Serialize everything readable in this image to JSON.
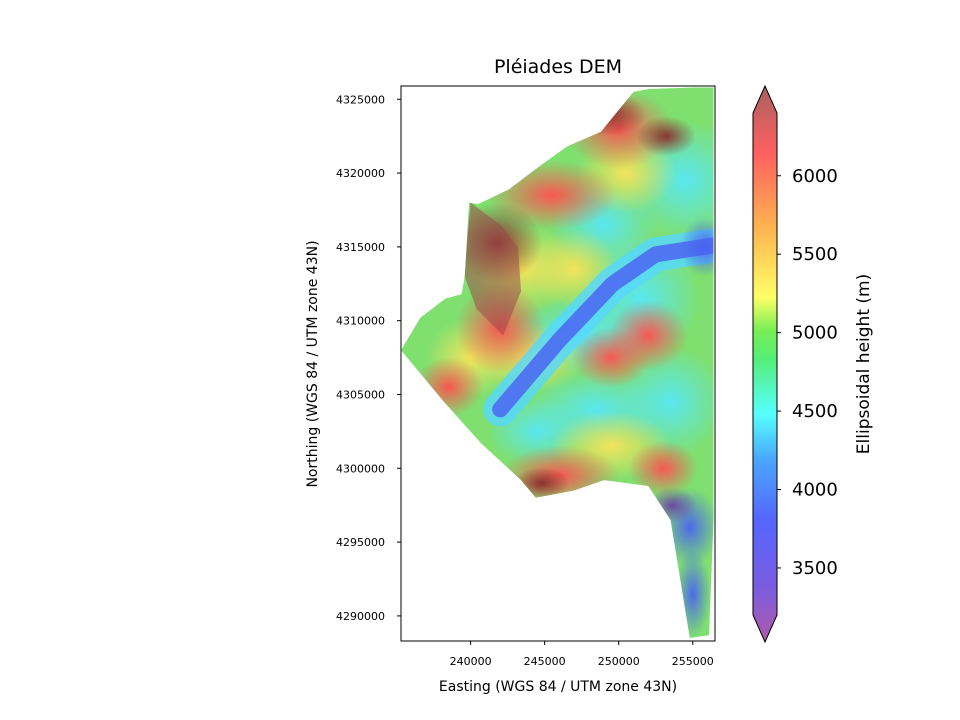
{
  "chart_data": {
    "type": "heatmap",
    "title": "Pléiades DEM",
    "xlabel": "Easting (WGS 84 / UTM zone 43N)",
    "ylabel": "Northing (WGS 84 / UTM zone 43N)",
    "xlim": [
      235300,
      256500
    ],
    "ylim": [
      4288300,
      4325900
    ],
    "x_ticks": [
      240000,
      245000,
      250000,
      255000
    ],
    "y_ticks": [
      4290000,
      4295000,
      4300000,
      4305000,
      4310000,
      4315000,
      4320000,
      4325000
    ],
    "x_tick_labels": [
      "240000",
      "245000",
      "250000",
      "255000"
    ],
    "y_tick_labels": [
      "4290000",
      "4295000",
      "4300000",
      "4305000",
      "4310000",
      "4315000",
      "4320000",
      "4325000"
    ],
    "colorbar": {
      "label": "Ellipsoidal height (m)",
      "range": [
        3200,
        6400
      ],
      "extend": "both",
      "ticks": [
        3500,
        4000,
        4500,
        5000,
        5500,
        6000
      ],
      "tick_labels": [
        "3500",
        "4000",
        "4500",
        "5000",
        "5500",
        "6000"
      ],
      "colormap": "rainbow (semi-transparent)",
      "colors": [
        "#b05aa8",
        "#7a5ce0",
        "#5566ff",
        "#4aa8ff",
        "#55ffff",
        "#55ee77",
        "#77ee55",
        "#ffff66",
        "#ffb050",
        "#ff6060",
        "#a86060"
      ]
    },
    "data_footprint": [
      [
        255000,
        4325800
      ],
      [
        256400,
        4325800
      ],
      [
        256400,
        4296500
      ],
      [
        256100,
        4288700
      ],
      [
        254800,
        4288500
      ],
      [
        253500,
        4296500
      ],
      [
        252000,
        4298800
      ],
      [
        249000,
        4299200
      ],
      [
        247000,
        4298500
      ],
      [
        244400,
        4298000
      ],
      [
        243400,
        4299200
      ],
      [
        240700,
        4301700
      ],
      [
        238200,
        4304500
      ],
      [
        235300,
        4308000
      ],
      [
        236600,
        4310200
      ],
      [
        238300,
        4311500
      ],
      [
        239400,
        4311800
      ],
      [
        239600,
        4313000
      ],
      [
        239900,
        4318000
      ],
      [
        240500,
        4317900
      ],
      [
        242600,
        4318900
      ],
      [
        244300,
        4320200
      ],
      [
        245400,
        4321000
      ],
      [
        246500,
        4321800
      ],
      [
        248800,
        4322800
      ],
      [
        251000,
        4325500
      ],
      [
        252000,
        4325700
      ]
    ],
    "valley_axis": [
      [
        256400,
        4315100
      ],
      [
        252500,
        4314500
      ],
      [
        249600,
        4312500
      ],
      [
        246000,
        4308700
      ],
      [
        242000,
        4304000
      ]
    ],
    "high_massif": [
      [
        240000,
        4318000
      ],
      [
        242000,
        4316500
      ],
      [
        243200,
        4315000
      ],
      [
        243400,
        4312000
      ],
      [
        242200,
        4309000
      ],
      [
        240400,
        4310800
      ],
      [
        239600,
        4313000
      ]
    ]
  }
}
